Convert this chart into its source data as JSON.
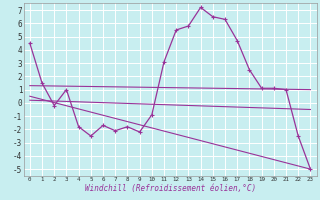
{
  "background_color": "#c8eef0",
  "grid_color": "#aadddd",
  "line_color": "#993399",
  "xlabel": "Windchill (Refroidissement éolien,°C)",
  "xlim": [
    -0.5,
    23.5
  ],
  "ylim": [
    -5.5,
    7.5
  ],
  "xticks": [
    0,
    1,
    2,
    3,
    4,
    5,
    6,
    7,
    8,
    9,
    10,
    11,
    12,
    13,
    14,
    15,
    16,
    17,
    18,
    19,
    20,
    21,
    22,
    23
  ],
  "yticks": [
    -5,
    -4,
    -3,
    -2,
    -1,
    0,
    1,
    2,
    3,
    4,
    5,
    6,
    7
  ],
  "series0": {
    "x": [
      0,
      1,
      2,
      3,
      4,
      5,
      6,
      7,
      8,
      9,
      10,
      11,
      12,
      13,
      14,
      15,
      16,
      17,
      18,
      19,
      20,
      21,
      22,
      23
    ],
    "y": [
      4.5,
      1.5,
      -0.2,
      1.0,
      -1.8,
      -2.5,
      -1.7,
      -2.1,
      -1.8,
      -2.2,
      -0.9,
      3.1,
      5.5,
      5.8,
      7.2,
      6.5,
      6.3,
      4.7,
      2.5,
      1.1,
      1.1,
      1.0,
      -2.5,
      -5.0
    ]
  },
  "trend1": {
    "x": [
      0,
      23
    ],
    "y": [
      1.3,
      1.0
    ]
  },
  "trend2": {
    "x": [
      0,
      23
    ],
    "y": [
      0.2,
      -0.5
    ]
  },
  "trend3": {
    "x": [
      0,
      23
    ],
    "y": [
      0.5,
      -5.0
    ]
  }
}
